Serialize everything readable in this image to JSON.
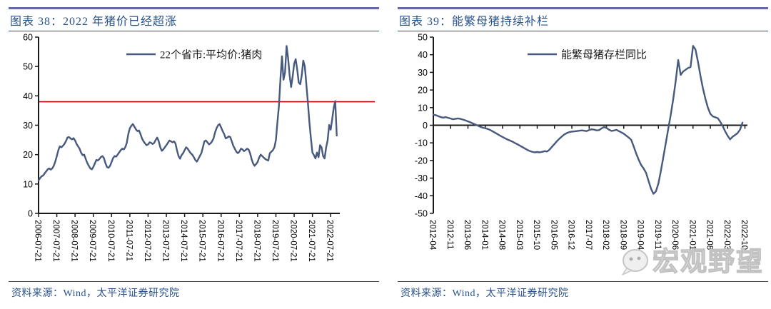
{
  "panels": [
    {
      "title": "图表 38：2022 年猪价已经超涨",
      "source": "资料来源：Wind，太平洋证券研究院"
    },
    {
      "title": "图表 39：能繁母猪持续补栏",
      "source": "资料来源：Wind，太平洋证券研究院"
    }
  ],
  "watermark": {
    "text": "宏观野望",
    "icon": "chat-bubble-face"
  },
  "colors": {
    "series_line": "#47597C",
    "reference_line": "#C00000",
    "axis": "#1A1A1A",
    "title_blue": "#28528B",
    "top_rule_purple": "#6668AB",
    "watermark_gray": "#C2C2C2"
  },
  "chart_data": [
    {
      "type": "line",
      "title": "2022 年猪价已经超涨",
      "legend": "22个省市:平均价:猪肉",
      "legend_position": "top-center",
      "grid": false,
      "ylim": [
        0,
        60
      ],
      "ytick_step": 10,
      "xlabel": "",
      "ylabel": "",
      "ref_line": {
        "value": 38
      },
      "x_monthly_start": "2006-07",
      "x_tick_interval_months": 12,
      "axis_months": 198,
      "x_tick_labels": [
        "2006-07-21",
        "2007-07-21",
        "2008-07-21",
        "2009-07-21",
        "2010-07-21",
        "2011-07-21",
        "2012-07-21",
        "2013-07-21",
        "2014-07-21",
        "2015-07-21",
        "2016-07-21",
        "2017-07-21",
        "2018-07-21",
        "2019-07-21",
        "2020-07-21",
        "2021-07-21",
        "2022-07-21"
      ],
      "values": [
        11.2,
        12.0,
        12.6,
        12.9,
        13.6,
        14.3,
        15.0,
        15.3,
        14.9,
        15.3,
        16.2,
        17.6,
        19.5,
        21.5,
        22.8,
        22.5,
        23.0,
        23.6,
        24.6,
        25.8,
        26.0,
        25.5,
        25.2,
        25.6,
        24.8,
        23.6,
        22.8,
        22.0,
        20.6,
        19.8,
        20.0,
        18.5,
        17.2,
        16.2,
        15.3,
        15.0,
        15.8,
        17.0,
        18.2,
        18.0,
        18.5,
        19.2,
        19.5,
        18.8,
        17.0,
        15.8,
        15.5,
        16.2,
        17.5,
        18.8,
        19.5,
        19.3,
        20.0,
        20.8,
        21.5,
        22.0,
        21.8,
        22.5,
        24.0,
        27.0,
        29.0,
        29.8,
        30.4,
        29.5,
        28.6,
        28.0,
        28.2,
        27.0,
        25.5,
        24.5,
        23.8,
        23.2,
        23.5,
        24.2,
        24.0,
        23.6,
        24.0,
        25.0,
        25.8,
        24.5,
        22.5,
        21.3,
        21.8,
        22.5,
        23.2,
        24.0,
        24.8,
        24.5,
        24.2,
        24.5,
        23.8,
        21.5,
        19.5,
        18.6,
        19.8,
        20.5,
        21.5,
        22.5,
        22.0,
        21.2,
        20.5,
        20.0,
        19.2,
        18.2,
        17.6,
        18.5,
        19.5,
        20.5,
        22.5,
        24.5,
        24.8,
        24.2,
        23.5,
        23.8,
        24.5,
        25.5,
        27.5,
        29.0,
        30.0,
        30.4,
        29.2,
        28.0,
        27.0,
        25.5,
        25.8,
        26.2,
        26.0,
        24.5,
        23.0,
        22.0,
        21.0,
        20.5,
        21.0,
        22.0,
        21.8,
        21.2,
        21.5,
        22.0,
        21.8,
        20.5,
        18.5,
        17.0,
        16.2,
        16.8,
        17.5,
        19.0,
        20.0,
        19.5,
        19.0,
        18.5,
        18.2,
        18.0,
        20.5,
        21.0,
        21.5,
        22.5,
        25.0,
        31.0,
        36.5,
        46.0,
        53.5,
        45.5,
        48.0,
        57.0,
        53.0,
        47.0,
        43.0,
        46.5,
        51.0,
        52.5,
        49.0,
        44.5,
        44.0,
        47.0,
        52.0,
        50.0,
        44.0,
        38.0,
        31.0,
        25.6,
        20.7,
        19.8,
        18.7,
        20.7,
        19.1,
        23.2,
        22.5,
        19.5,
        18.7,
        22.4,
        24.8,
        30.1,
        28.5,
        32.0,
        36.0,
        38.2,
        26.5
      ]
    },
    {
      "type": "line",
      "title": "能繁母猪持续补栏",
      "legend": "能繁母猪存栏同比",
      "legend_position": "top-center",
      "grid": false,
      "ylim": [
        -50,
        50
      ],
      "ytick_step": 10,
      "xlabel": "",
      "ylabel": "",
      "zero_axis": true,
      "x_monthly_start": "2012-04",
      "x_tick_interval_months": 7,
      "axis_months": 127,
      "x_tick_labels": [
        "2012-04",
        "2012-11",
        "2013-06",
        "2014-01",
        "2014-08",
        "2015-03",
        "2015-10",
        "2016-05",
        "2016-12",
        "2017-07",
        "2018-02",
        "2018-09",
        "2019-04",
        "2019-11",
        "2020-06",
        "2021-01",
        "2021-08",
        "2022-03",
        "2022-10"
      ],
      "values": [
        6.0,
        5.7,
        5.2,
        4.6,
        4.3,
        4.6,
        4.2,
        3.8,
        3.4,
        3.7,
        3.9,
        3.6,
        3.2,
        2.7,
        2.2,
        1.6,
        1.0,
        0.4,
        -0.2,
        -0.9,
        -1.4,
        -1.7,
        -2.1,
        -2.7,
        -3.5,
        -4.3,
        -5.1,
        -5.9,
        -6.7,
        -7.4,
        -8.1,
        -8.7,
        -9.3,
        -10.1,
        -10.8,
        -11.6,
        -12.4,
        -13.2,
        -14.0,
        -14.6,
        -15.1,
        -15.4,
        -15.2,
        -15.4,
        -15.1,
        -14.7,
        -14.9,
        -13.8,
        -12.2,
        -10.6,
        -9.0,
        -7.6,
        -6.3,
        -5.2,
        -4.4,
        -3.9,
        -3.6,
        -3.5,
        -3.3,
        -3.1,
        -2.9,
        -3.1,
        -3.3,
        -2.7,
        -2.3,
        -2.5,
        -2.9,
        -2.8,
        -1.8,
        -1.0,
        -1.5,
        -2.5,
        -3.2,
        -3.0,
        -2.6,
        -3.3,
        -4.0,
        -4.8,
        -5.9,
        -7.0,
        -8.3,
        -12.0,
        -16.0,
        -19.5,
        -22.5,
        -24.5,
        -27.0,
        -31.5,
        -36.0,
        -38.9,
        -37.5,
        -33.0,
        -26.0,
        -18.0,
        -10.0,
        -2.0,
        6.0,
        15.0,
        25.0,
        37.0,
        28.5,
        30.5,
        31.5,
        32.5,
        33.0,
        45.0,
        43.0,
        36.0,
        28.0,
        21.0,
        15.0,
        10.0,
        6.5,
        5.0,
        4.5,
        4.0,
        2.0,
        -0.5,
        -3.5,
        -6.0,
        -8.0,
        -6.5,
        -5.5,
        -4.5,
        -2.5,
        1.5
      ]
    }
  ]
}
